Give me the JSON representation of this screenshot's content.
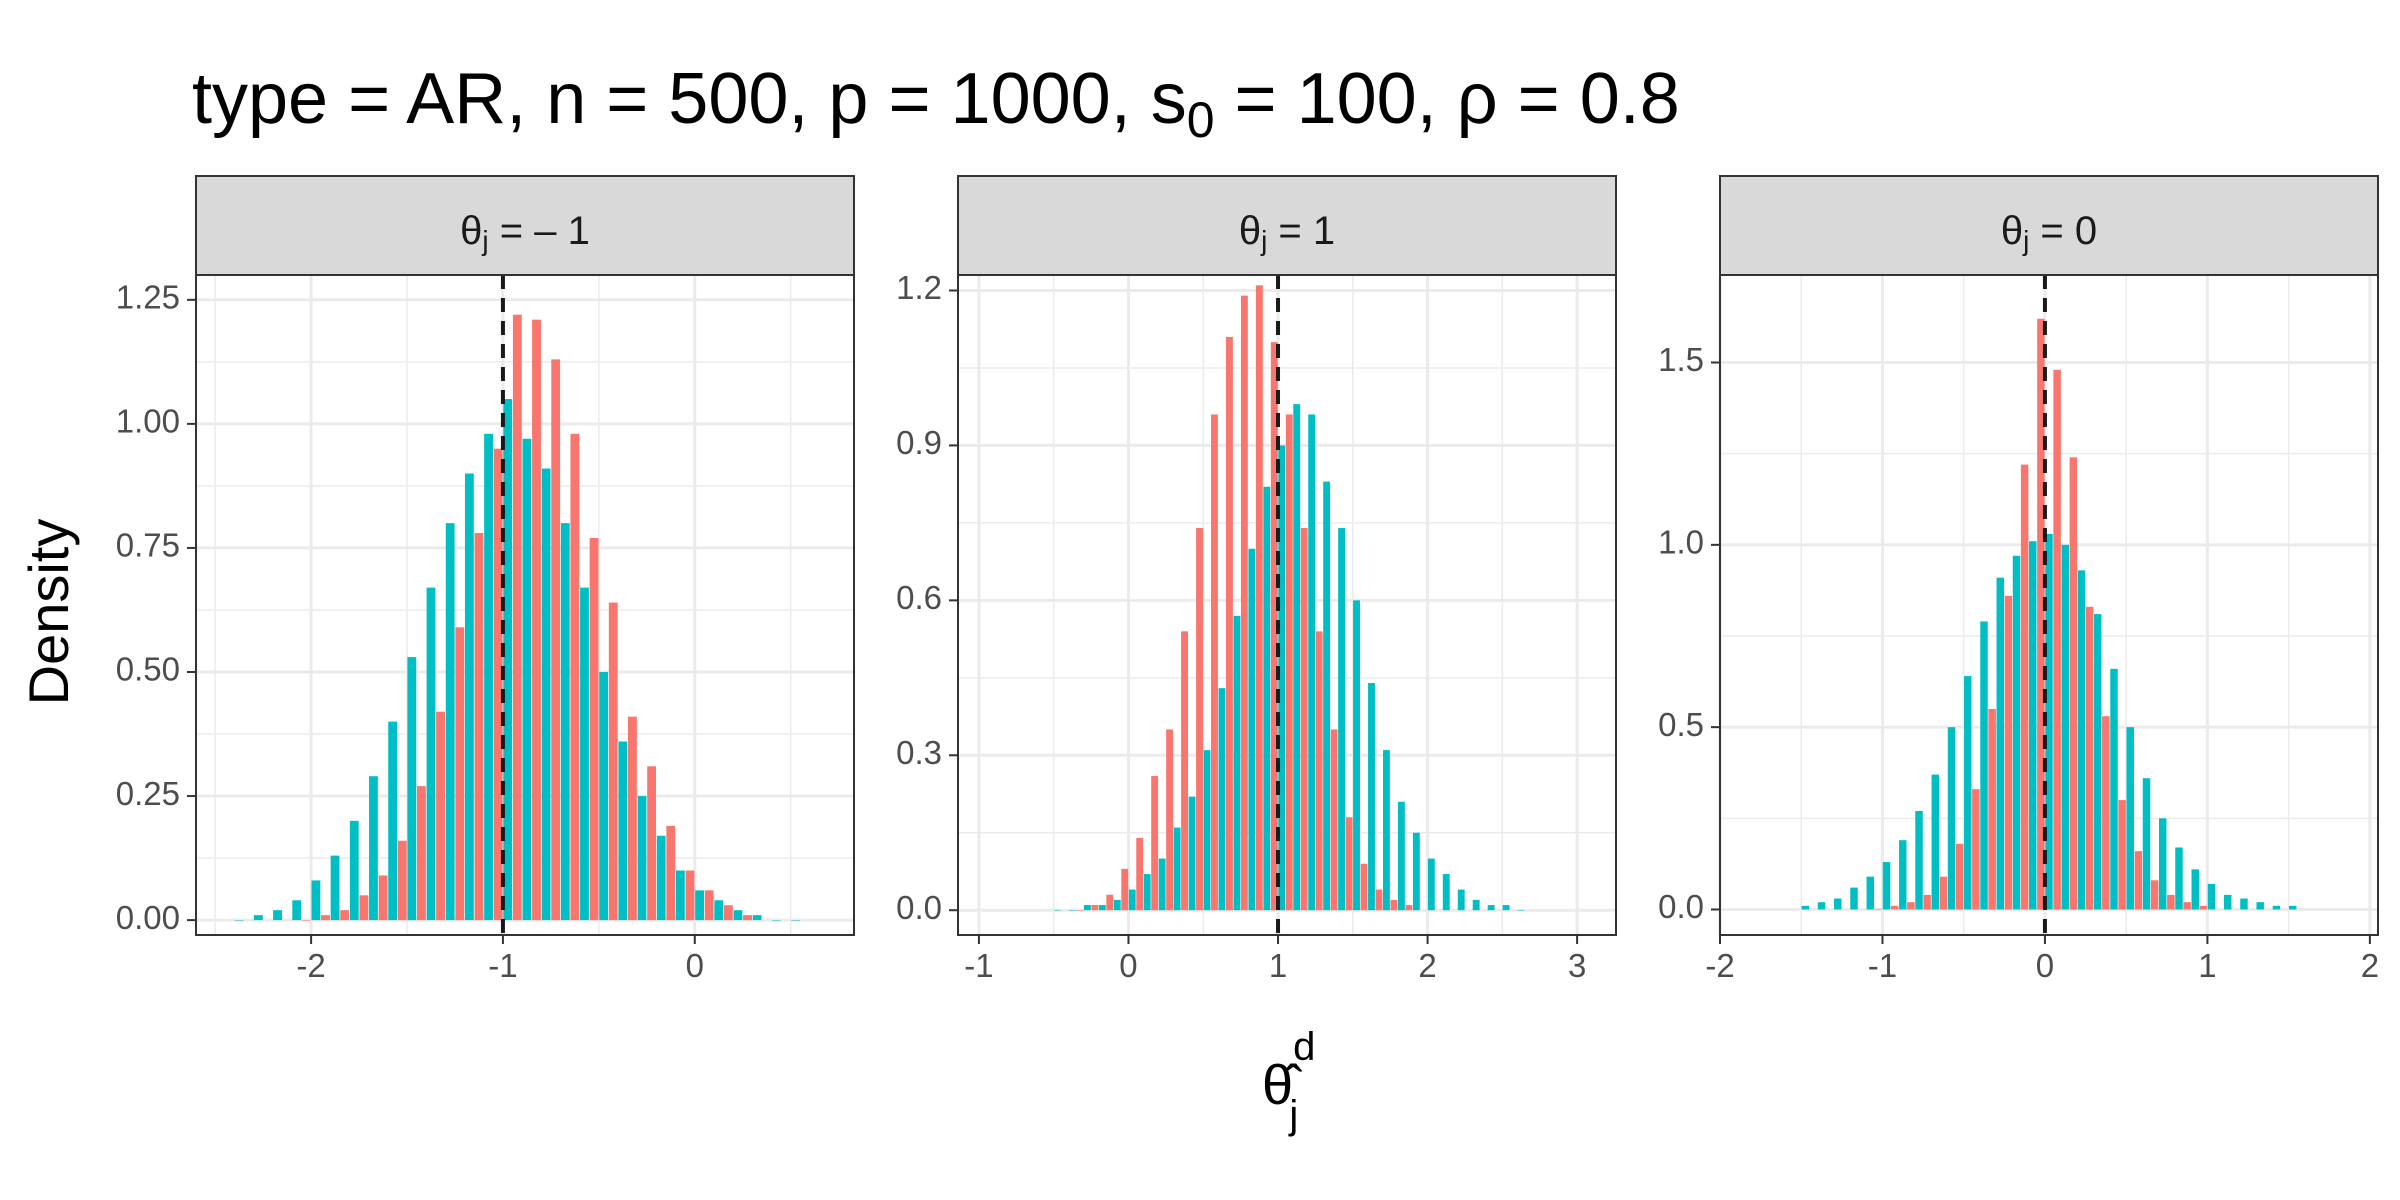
{
  "title": {
    "prefix": "type = AR, n = 500, p = 1000, s",
    "sub": "0",
    "suffix": " = 100, ρ = 0.8"
  },
  "axes": {
    "ylabel": "Density",
    "xlabel_base": "θ̂",
    "xlabel_sup": "d",
    "xlabel_sub": "j"
  },
  "colors": {
    "series_a": "#F8766D",
    "series_b": "#00BFC4",
    "strip_bg": "#D9D9D9",
    "grid": "#EBEBEB",
    "panel_border": "#333333",
    "vline": "#1a1a1a"
  },
  "chart_data": [
    {
      "type": "bar",
      "facet_label": {
        "base": "θ",
        "sub": "j",
        "rest": " = – 1"
      },
      "reference_line": -1,
      "grid": true,
      "xlim": [
        -2.6,
        0.83
      ],
      "ylim": [
        -0.03,
        1.3
      ],
      "xticks": [
        -2,
        -1,
        0
      ],
      "xtick_labels": [
        "-2",
        "-1",
        "0"
      ],
      "yticks": [
        0,
        0.25,
        0.5,
        0.75,
        1.0,
        1.25
      ],
      "ytick_labels": [
        "0.00",
        "0.25",
        "0.50",
        "0.75",
        "1.00",
        "1.25"
      ],
      "bin_width": 0.1,
      "series": [
        {
          "color_key": "series_a",
          "bins": [
            [
              -2.0,
              0.0
            ],
            [
              -1.9,
              0.01
            ],
            [
              -1.8,
              0.02
            ],
            [
              -1.7,
              0.05
            ],
            [
              -1.6,
              0.09
            ],
            [
              -1.5,
              0.16
            ],
            [
              -1.4,
              0.27
            ],
            [
              -1.3,
              0.42
            ],
            [
              -1.2,
              0.59
            ],
            [
              -1.1,
              0.78
            ],
            [
              -1.0,
              0.95
            ],
            [
              -0.9,
              1.22
            ],
            [
              -0.8,
              1.21
            ],
            [
              -0.7,
              1.13
            ],
            [
              -0.6,
              0.98
            ],
            [
              -0.5,
              0.77
            ],
            [
              -0.4,
              0.64
            ],
            [
              -0.3,
              0.41
            ],
            [
              -0.2,
              0.31
            ],
            [
              -0.1,
              0.19
            ],
            [
              0.0,
              0.1
            ],
            [
              0.1,
              0.06
            ],
            [
              0.2,
              0.03
            ],
            [
              0.3,
              0.01
            ]
          ]
        },
        {
          "color_key": "series_b",
          "bins": [
            [
              -2.4,
              0.0
            ],
            [
              -2.3,
              0.01
            ],
            [
              -2.2,
              0.02
            ],
            [
              -2.1,
              0.04
            ],
            [
              -2.0,
              0.08
            ],
            [
              -1.9,
              0.13
            ],
            [
              -1.8,
              0.2
            ],
            [
              -1.7,
              0.29
            ],
            [
              -1.6,
              0.4
            ],
            [
              -1.5,
              0.53
            ],
            [
              -1.4,
              0.67
            ],
            [
              -1.3,
              0.8
            ],
            [
              -1.2,
              0.9
            ],
            [
              -1.1,
              0.98
            ],
            [
              -1.0,
              1.05
            ],
            [
              -0.9,
              0.97
            ],
            [
              -0.8,
              0.91
            ],
            [
              -0.7,
              0.8
            ],
            [
              -0.6,
              0.67
            ],
            [
              -0.5,
              0.5
            ],
            [
              -0.4,
              0.36
            ],
            [
              -0.3,
              0.25
            ],
            [
              -0.2,
              0.17
            ],
            [
              -0.1,
              0.1
            ],
            [
              0.0,
              0.06
            ],
            [
              0.1,
              0.04
            ],
            [
              0.2,
              0.02
            ],
            [
              0.3,
              0.01
            ],
            [
              0.4,
              0.0
            ],
            [
              0.5,
              0.0
            ]
          ]
        }
      ]
    },
    {
      "type": "bar",
      "facet_label": {
        "base": "θ",
        "sub": "j",
        "rest": " = 1"
      },
      "reference_line": 1,
      "grid": true,
      "xlim": [
        -1.14,
        3.26
      ],
      "ylim": [
        -0.048,
        1.23
      ],
      "xticks": [
        -1,
        0,
        1,
        2,
        3
      ],
      "xtick_labels": [
        "-1",
        "0",
        "1",
        "2",
        "3"
      ],
      "yticks": [
        0,
        0.3,
        0.6,
        0.9,
        1.2
      ],
      "ytick_labels": [
        "0.0",
        "0.3",
        "0.6",
        "0.9",
        "1.2"
      ],
      "bin_width": 0.1,
      "series": [
        {
          "color_key": "series_a",
          "bins": [
            [
              -0.3,
              0.0
            ],
            [
              -0.2,
              0.01
            ],
            [
              -0.1,
              0.03
            ],
            [
              0.0,
              0.08
            ],
            [
              0.1,
              0.14
            ],
            [
              0.2,
              0.26
            ],
            [
              0.3,
              0.35
            ],
            [
              0.4,
              0.54
            ],
            [
              0.5,
              0.74
            ],
            [
              0.6,
              0.96
            ],
            [
              0.7,
              1.11
            ],
            [
              0.8,
              1.19
            ],
            [
              0.9,
              1.21
            ],
            [
              1.0,
              1.1
            ],
            [
              1.1,
              0.96
            ],
            [
              1.2,
              0.74
            ],
            [
              1.3,
              0.54
            ],
            [
              1.4,
              0.35
            ],
            [
              1.5,
              0.18
            ],
            [
              1.6,
              0.09
            ],
            [
              1.7,
              0.04
            ],
            [
              1.8,
              0.02
            ],
            [
              1.9,
              0.01
            ]
          ]
        },
        {
          "color_key": "series_b",
          "bins": [
            [
              -0.5,
              0.0
            ],
            [
              -0.4,
              0.0
            ],
            [
              -0.3,
              0.01
            ],
            [
              -0.2,
              0.01
            ],
            [
              -0.1,
              0.02
            ],
            [
              0.0,
              0.04
            ],
            [
              0.1,
              0.07
            ],
            [
              0.2,
              0.1
            ],
            [
              0.3,
              0.16
            ],
            [
              0.4,
              0.22
            ],
            [
              0.5,
              0.31
            ],
            [
              0.6,
              0.43
            ],
            [
              0.7,
              0.57
            ],
            [
              0.8,
              0.7
            ],
            [
              0.9,
              0.82
            ],
            [
              1.0,
              0.9
            ],
            [
              1.1,
              0.98
            ],
            [
              1.2,
              0.96
            ],
            [
              1.3,
              0.83
            ],
            [
              1.4,
              0.74
            ],
            [
              1.5,
              0.6
            ],
            [
              1.6,
              0.44
            ],
            [
              1.7,
              0.31
            ],
            [
              1.8,
              0.21
            ],
            [
              1.9,
              0.15
            ],
            [
              2.0,
              0.1
            ],
            [
              2.1,
              0.07
            ],
            [
              2.2,
              0.04
            ],
            [
              2.3,
              0.02
            ],
            [
              2.4,
              0.01
            ],
            [
              2.5,
              0.01
            ],
            [
              2.6,
              0.0
            ]
          ]
        }
      ]
    },
    {
      "type": "bar",
      "facet_label": {
        "base": "θ",
        "sub": "j",
        "rest": " = 0"
      },
      "reference_line": 0,
      "grid": true,
      "xlim": [
        -2.0,
        2.05
      ],
      "ylim": [
        -0.07,
        1.74
      ],
      "xticks": [
        -2,
        -1,
        0,
        1,
        2
      ],
      "xtick_labels": [
        "-2",
        "-1",
        "0",
        "1",
        "2"
      ],
      "yticks": [
        0,
        0.5,
        1.0,
        1.5
      ],
      "ytick_labels": [
        "0.0",
        "0.5",
        "1.0",
        "1.5"
      ],
      "bin_width": 0.1,
      "series": [
        {
          "color_key": "series_a",
          "bins": [
            [
              -1.0,
              0.0
            ],
            [
              -0.9,
              0.01
            ],
            [
              -0.8,
              0.02
            ],
            [
              -0.7,
              0.04
            ],
            [
              -0.6,
              0.09
            ],
            [
              -0.5,
              0.18
            ],
            [
              -0.4,
              0.33
            ],
            [
              -0.3,
              0.55
            ],
            [
              -0.2,
              0.86
            ],
            [
              -0.1,
              1.22
            ],
            [
              0.0,
              1.62
            ],
            [
              0.1,
              1.48
            ],
            [
              0.2,
              1.24
            ],
            [
              0.3,
              0.83
            ],
            [
              0.4,
              0.53
            ],
            [
              0.5,
              0.3
            ],
            [
              0.6,
              0.16
            ],
            [
              0.7,
              0.08
            ],
            [
              0.8,
              0.04
            ],
            [
              0.9,
              0.02
            ],
            [
              1.0,
              0.01
            ]
          ]
        },
        {
          "color_key": "series_b",
          "bins": [
            [
              -1.5,
              0.01
            ],
            [
              -1.4,
              0.02
            ],
            [
              -1.3,
              0.03
            ],
            [
              -1.2,
              0.06
            ],
            [
              -1.1,
              0.09
            ],
            [
              -1.0,
              0.13
            ],
            [
              -0.9,
              0.19
            ],
            [
              -0.8,
              0.27
            ],
            [
              -0.7,
              0.37
            ],
            [
              -0.6,
              0.5
            ],
            [
              -0.5,
              0.64
            ],
            [
              -0.4,
              0.79
            ],
            [
              -0.3,
              0.91
            ],
            [
              -0.2,
              0.97
            ],
            [
              -0.1,
              1.01
            ],
            [
              0.0,
              1.03
            ],
            [
              0.1,
              1.0
            ],
            [
              0.2,
              0.93
            ],
            [
              0.3,
              0.81
            ],
            [
              0.4,
              0.66
            ],
            [
              0.5,
              0.5
            ],
            [
              0.6,
              0.36
            ],
            [
              0.7,
              0.25
            ],
            [
              0.8,
              0.17
            ],
            [
              0.9,
              0.11
            ],
            [
              1.0,
              0.07
            ],
            [
              1.1,
              0.04
            ],
            [
              1.2,
              0.03
            ],
            [
              1.3,
              0.02
            ],
            [
              1.4,
              0.01
            ],
            [
              1.5,
              0.01
            ]
          ]
        }
      ]
    }
  ]
}
